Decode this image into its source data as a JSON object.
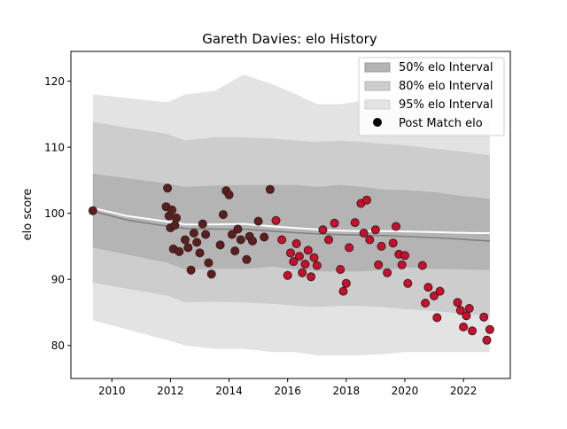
{
  "chart_data": {
    "type": "line",
    "title": "Gareth Davies: elo History",
    "xlabel": "",
    "ylabel": "elo score",
    "xlim": [
      2008.6,
      2023.6
    ],
    "ylim": [
      75,
      124.5
    ],
    "x_ticks": [
      2010,
      2012,
      2014,
      2016,
      2018,
      2020,
      2022
    ],
    "y_ticks": [
      80,
      90,
      100,
      110,
      120
    ],
    "x_tick_labels": [
      "2010",
      "2012",
      "2014",
      "2016",
      "2018",
      "2020",
      "2022"
    ],
    "y_tick_labels": [
      "80",
      "90",
      "100",
      "110",
      "120"
    ],
    "legend": {
      "position": "top-right",
      "entries": [
        {
          "label": "50% elo Interval",
          "kind": "band50"
        },
        {
          "label": "80% elo Interval",
          "kind": "band80"
        },
        {
          "label": "95% elo Interval",
          "kind": "band95"
        },
        {
          "label": "Post Match elo",
          "kind": "marker"
        }
      ]
    },
    "colors": {
      "band50": "#b4b4b4",
      "band80": "#cdcdcd",
      "band95": "#e3e3e3",
      "mean_line": "#ffffff",
      "median_line": "#808080",
      "marker_fill_early": "#5a2020",
      "marker_fill_late": "#c8102e",
      "marker_edge": "#3a1a1a"
    },
    "intervals": {
      "x": [
        2009.35,
        2011.9,
        2012.5,
        2013.5,
        2014.5,
        2015.5,
        2016.3,
        2017.0,
        2017.8,
        2018.5,
        2019.3,
        2020.0,
        2021.0,
        2022.0,
        2022.9
      ],
      "q25": [
        94.8,
        92.5,
        91.5,
        91.6,
        91.6,
        91.9,
        91.5,
        91.2,
        91.2,
        91.2,
        91.4,
        91.8,
        91.6,
        91.5,
        91.4
      ],
      "q75": [
        106.0,
        104.5,
        104.0,
        104.2,
        104.3,
        104.3,
        104.3,
        104.0,
        104.3,
        104.0,
        103.6,
        103.5,
        103.2,
        102.6,
        102.2
      ],
      "q10": [
        89.5,
        87.5,
        86.5,
        86.6,
        86.5,
        86.3,
        86.0,
        85.8,
        86.0,
        86.0,
        85.8,
        85.5,
        85.2,
        84.8,
        84.5
      ],
      "q90": [
        113.8,
        112.0,
        111.0,
        111.5,
        111.5,
        111.3,
        111.0,
        110.8,
        111.0,
        110.8,
        110.5,
        110.3,
        109.8,
        109.3,
        108.8
      ],
      "q025": [
        83.8,
        80.8,
        80.0,
        79.5,
        79.5,
        79.0,
        79.0,
        78.5,
        78.5,
        78.5,
        78.7,
        79.0,
        79.0,
        79.0,
        79.0
      ],
      "q975": [
        118.0,
        116.8,
        118.0,
        118.5,
        121.0,
        119.5,
        118.0,
        116.5,
        116.5,
        117.0,
        116.0,
        115.5,
        114.8,
        114.0,
        113.8
      ]
    },
    "series": [
      {
        "name": "",
        "role": "mean",
        "x": [
          2009.35,
          2010.5,
          2011.5,
          2012.5,
          2013.5,
          2014.5,
          2015.5,
          2016.5,
          2017.5,
          2018.5,
          2019.5,
          2020.5,
          2021.5,
          2022.5,
          2022.9
        ],
        "y": [
          100.8,
          99.6,
          99.0,
          98.3,
          98.3,
          98.4,
          98.0,
          97.7,
          97.4,
          97.3,
          97.3,
          97.2,
          97.1,
          97.0,
          97.0
        ]
      },
      {
        "name": "",
        "role": "median",
        "x": [
          2009.35,
          2010.5,
          2011.5,
          2012.5,
          2013.5,
          2014.5,
          2015.5,
          2016.5,
          2017.5,
          2018.5,
          2019.5,
          2020.5,
          2021.5,
          2022.5,
          2022.9
        ],
        "y": [
          100.3,
          99.0,
          98.3,
          97.7,
          97.6,
          97.6,
          97.3,
          97.0,
          96.8,
          96.7,
          96.6,
          96.4,
          96.2,
          95.9,
          95.8
        ]
      },
      {
        "name": "Post Match elo",
        "role": "points",
        "x": [
          2009.35,
          2011.85,
          2011.9,
          2011.95,
          2012.0,
          2012.05,
          2012.1,
          2012.15,
          2012.2,
          2012.3,
          2012.5,
          2012.6,
          2012.7,
          2012.8,
          2012.9,
          2013.0,
          2013.1,
          2013.2,
          2013.3,
          2013.4,
          2013.7,
          2013.8,
          2013.9,
          2014.0,
          2014.1,
          2014.2,
          2014.3,
          2014.4,
          2014.6,
          2014.7,
          2014.8,
          2015.0,
          2015.2,
          2015.4,
          2015.6,
          2015.8,
          2016.0,
          2016.1,
          2016.2,
          2016.3,
          2016.4,
          2016.5,
          2016.6,
          2016.7,
          2016.8,
          2016.9,
          2017.0,
          2017.2,
          2017.4,
          2017.6,
          2017.8,
          2017.9,
          2018.0,
          2018.1,
          2018.3,
          2018.5,
          2018.6,
          2018.7,
          2018.8,
          2019.0,
          2019.1,
          2019.2,
          2019.4,
          2019.6,
          2019.7,
          2019.8,
          2019.9,
          2020.0,
          2020.1,
          2020.6,
          2020.7,
          2020.8,
          2021.0,
          2021.1,
          2021.2,
          2021.8,
          2021.9,
          2022.0,
          2022.1,
          2022.2,
          2022.3,
          2022.7,
          2022.8,
          2022.9
        ],
        "y": [
          100.4,
          101.0,
          103.8,
          99.6,
          97.8,
          100.5,
          94.6,
          98.2,
          99.3,
          94.2,
          96.0,
          94.8,
          91.4,
          97.0,
          95.6,
          94.0,
          98.4,
          96.8,
          92.5,
          90.8,
          95.2,
          99.8,
          103.4,
          102.8,
          96.8,
          94.3,
          97.6,
          96.0,
          93.0,
          96.5,
          95.8,
          98.8,
          96.4,
          103.6,
          98.9,
          96.0,
          90.6,
          94.0,
          92.7,
          95.4,
          93.5,
          91.0,
          92.3,
          94.4,
          90.4,
          93.3,
          92.1,
          97.5,
          96.0,
          98.5,
          91.5,
          88.2,
          89.4,
          94.8,
          98.6,
          101.5,
          97.0,
          102.0,
          96.0,
          97.5,
          92.2,
          95.0,
          91.0,
          95.5,
          98.0,
          93.8,
          92.2,
          93.6,
          89.4,
          92.1,
          86.4,
          88.8,
          87.5,
          84.2,
          88.2,
          86.5,
          85.3,
          82.8,
          84.5,
          85.6,
          82.2,
          84.3,
          80.8,
          82.4
        ]
      }
    ]
  }
}
